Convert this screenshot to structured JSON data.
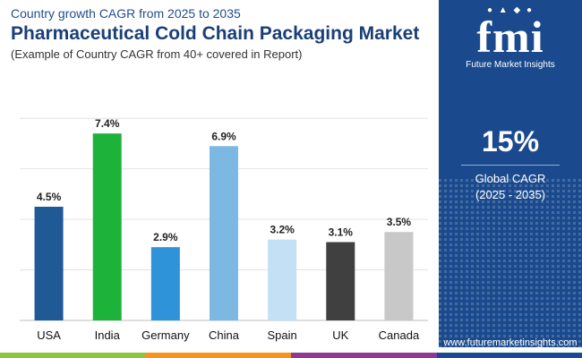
{
  "header": {
    "subtitle": "Country growth CAGR from 2025 to 2035",
    "title": "Pharmaceutical Cold Chain Packaging Market",
    "note": "(Example of Country CAGR from 40+ covered in Report)"
  },
  "sidebar": {
    "logo_mark": "fmi",
    "logo_text": "Future Market Insights",
    "stat_value": "15%",
    "stat_label": "Global CAGR",
    "stat_period": "(2025 - 2035)",
    "website": "www.futuremarketinsights.com",
    "background_color": "#1a4a8d"
  },
  "bottom_bar_colors": [
    "#8cc63f",
    "#f7941d",
    "#8b3a8f",
    "#1a4a8d"
  ],
  "chart_data": {
    "type": "bar",
    "title": "Pharmaceutical Cold Chain Packaging Market",
    "xlabel": "",
    "ylabel": "",
    "ylim": [
      0,
      9
    ],
    "grid": true,
    "categories": [
      "USA",
      "India",
      "Germany",
      "China",
      "Spain",
      "UK",
      "Canada"
    ],
    "values": [
      4.5,
      7.4,
      2.9,
      6.9,
      3.2,
      3.1,
      3.5
    ],
    "labels": [
      "4.5%",
      "7.4%",
      "2.9%",
      "6.9%",
      "3.2%",
      "3.1%",
      "3.5%"
    ],
    "colors": [
      "#1f5a96",
      "#1db33a",
      "#2e93d8",
      "#7db8e3",
      "#c3e0f5",
      "#404040",
      "#c8c8c8"
    ]
  }
}
